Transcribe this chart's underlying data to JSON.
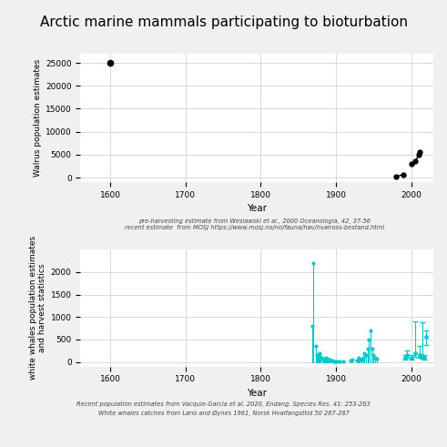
{
  "title": "Arctic marine mammals participating to bioturbation",
  "title_fontsize": 11,
  "background_color": "#f0f0f0",
  "plot_bg_color": "#ffffff",
  "grid_color": "#d8d8d8",
  "walrus_pre_harvest_years": [
    1600
  ],
  "walrus_pre_harvest_values": [
    25000
  ],
  "walrus_group1_years": [
    1980,
    1990
  ],
  "walrus_group1_values": [
    200,
    700
  ],
  "walrus_group2_years": [
    2000,
    2006,
    2010,
    2012
  ],
  "walrus_group2_values": [
    2900,
    3600,
    4900,
    5500
  ],
  "walrus_color": "#000000",
  "walrus_ylabel": "Walrus population estimates",
  "walrus_xlabel": "Year",
  "walrus_xlim": [
    1560,
    2030
  ],
  "walrus_ylim": [
    -1000,
    27000
  ],
  "walrus_yticks": [
    0,
    5000,
    10000,
    15000,
    20000,
    25000
  ],
  "walrus_xticks": [
    1600,
    1700,
    1800,
    1900,
    2000
  ],
  "walrus_caption1": "pre-harvesting estimate from Weslawski et al., 2000 Oceanologia, 42, 37-56",
  "walrus_caption2": "recent estimate  from MOSJ https://www.mosj.no/no/fauna/hav/hvalross-bestand.html",
  "whale_color": "#00c8cc",
  "whale_ylabel": "white whales population estimates\nand harvest statistics",
  "whale_xlabel": "Year",
  "whale_xlim": [
    1560,
    2030
  ],
  "whale_ylim": [
    -100,
    2500
  ],
  "whale_yticks": [
    0,
    500,
    1000,
    1500,
    2000
  ],
  "whale_xticks": [
    1600,
    1700,
    1800,
    1900,
    2000
  ],
  "whale_caption1": "Recent population estimates from Vacquie-Garcia et al. 2020, Endang. Species Res. 41: 253-263",
  "whale_caption2": "White whales catches from Løno and Øynes 1961, Norsk Hvalfangsttid 50 267-287",
  "whale_catch_years": [
    1868,
    1870,
    1873,
    1875,
    1876,
    1877,
    1878,
    1880,
    1882,
    1883,
    1884,
    1885,
    1886,
    1887,
    1888,
    1889,
    1890,
    1891,
    1892,
    1893,
    1895,
    1897,
    1899,
    1901,
    1905,
    1910,
    1920,
    1922,
    1928,
    1930,
    1932,
    1934,
    1936,
    1938,
    1940,
    1942,
    1944,
    1946,
    1948,
    1950,
    1952,
    1954
  ],
  "whale_catch_values": [
    800,
    2200,
    350,
    150,
    100,
    180,
    200,
    120,
    80,
    70,
    60,
    60,
    50,
    100,
    80,
    60,
    40,
    50,
    30,
    30,
    30,
    10,
    10,
    10,
    20,
    10,
    30,
    50,
    30,
    100,
    50,
    50,
    100,
    200,
    150,
    300,
    500,
    700,
    300,
    150,
    100,
    80
  ],
  "whale_pop_years": [
    1992,
    1995,
    2000,
    2005,
    2012,
    2015,
    2018
  ],
  "whale_pop_values": [
    100,
    150,
    100,
    200,
    150,
    130,
    100
  ],
  "whale_pop_yerr_low": [
    40,
    50,
    40,
    80,
    60,
    50,
    40
  ],
  "whale_pop_yerr_high": [
    60,
    100,
    60,
    700,
    200,
    750,
    60
  ],
  "whale_recent_year": [
    2020
  ],
  "whale_recent_value": [
    570
  ],
  "whale_recent_yerr_low": [
    200
  ],
  "whale_recent_yerr_high": [
    130
  ]
}
